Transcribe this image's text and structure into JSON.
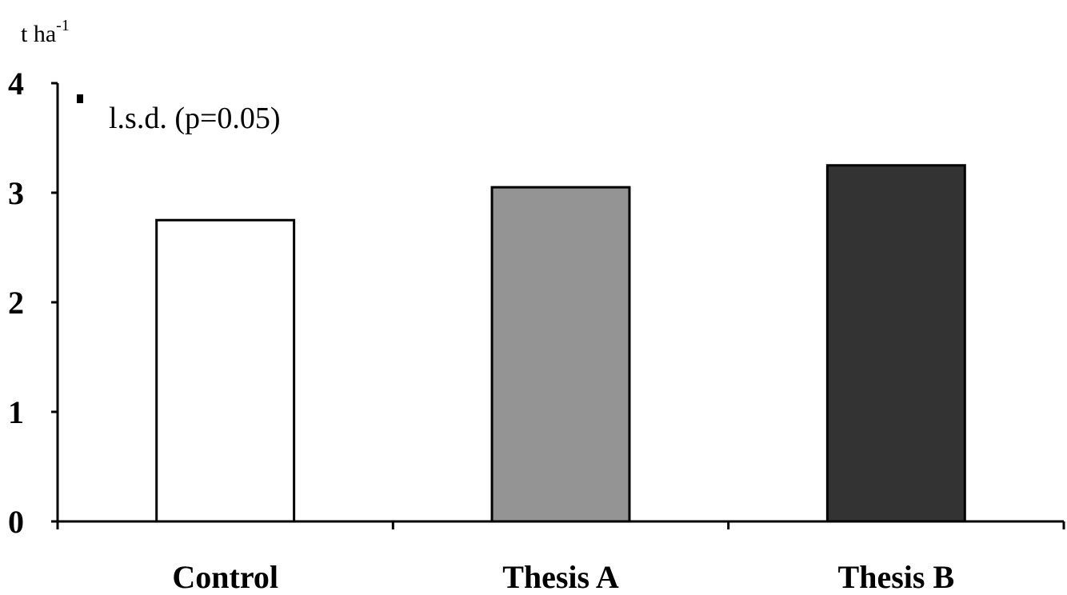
{
  "chart_data": {
    "type": "bar",
    "categories": [
      "Control",
      "Thesis A",
      "Thesis B"
    ],
    "values": [
      2.75,
      3.05,
      3.25
    ],
    "colors": [
      "#ffffff",
      "#949494",
      "#333333"
    ],
    "ylabel": "t ha",
    "ylabel_exponent": "-1",
    "ylim": [
      0,
      4
    ],
    "yticks": [
      "0",
      "1",
      "2",
      "3",
      "4"
    ],
    "grid": false,
    "annotation": "l.s.d. (p=0.05)",
    "lsd_value": 0.2
  }
}
